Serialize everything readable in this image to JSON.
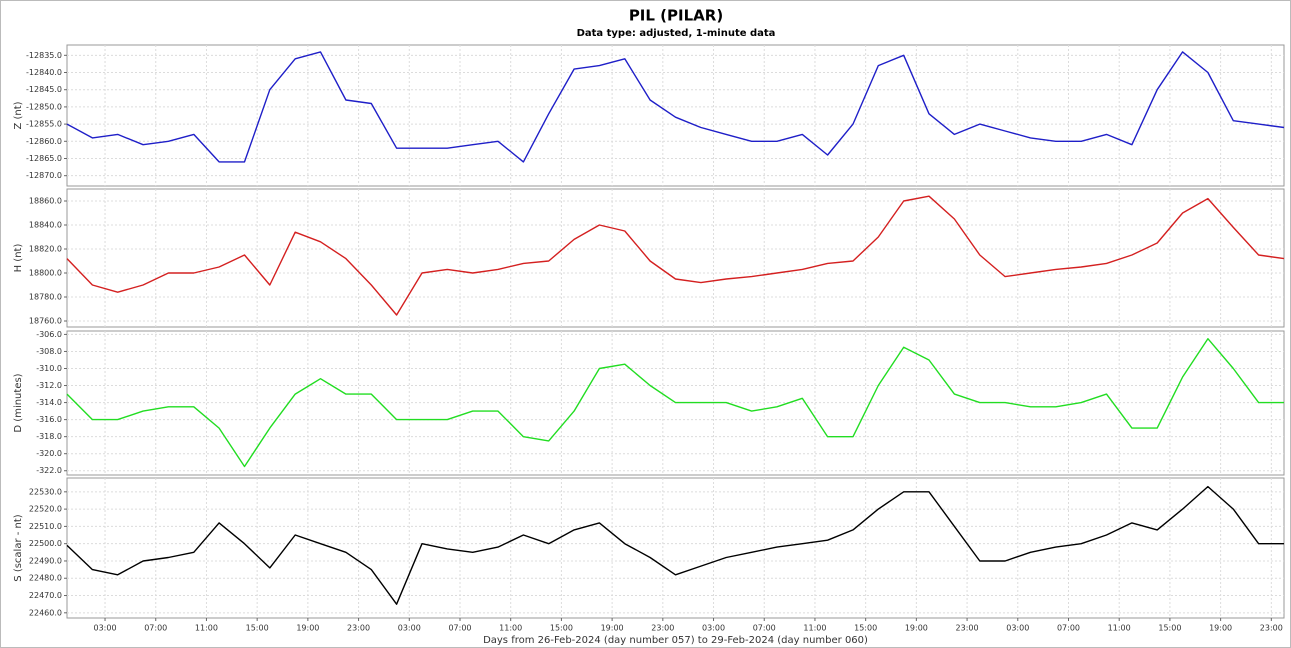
{
  "title": "PIL (PILAR)",
  "subtitle": "Data type: adjusted, 1-minute data",
  "chart_data": [
    {
      "type": "line",
      "ylabel": "Z (nt)",
      "color": "#1f1fc8",
      "grid": true,
      "x": [
        0,
        2,
        4,
        6,
        8,
        10,
        12,
        14,
        16,
        18,
        20,
        22,
        24,
        26,
        28,
        30,
        32,
        34,
        36,
        38,
        40,
        42,
        44,
        46,
        48,
        50,
        52,
        54,
        56,
        58,
        60,
        62,
        64,
        66,
        68,
        70,
        72,
        74,
        76,
        78,
        80,
        82,
        84,
        86,
        88,
        90,
        92,
        94,
        96
      ],
      "values": [
        -12855,
        -12859,
        -12858,
        -12861,
        -12860,
        -12858,
        -12866,
        -12866,
        -12845,
        -12836,
        -12834,
        -12848,
        -12849,
        -12862,
        -12862,
        -12862,
        -12861,
        -12860,
        -12866,
        -12852,
        -12839,
        -12838,
        -12836,
        -12848,
        -12853,
        -12856,
        -12858,
        -12860,
        -12860,
        -12858,
        -12864,
        -12855,
        -12838,
        -12835,
        -12852,
        -12858,
        -12855,
        -12857,
        -12859,
        -12860,
        -12860,
        -12858,
        -12861,
        -12845,
        -12834,
        -12840,
        -12854,
        -12855,
        -12856
      ],
      "ylim": [
        -12873,
        -12832
      ],
      "yticks": [
        {
          "value": -12835,
          "label": "-12835.0"
        },
        {
          "value": -12840,
          "label": "-12840.0"
        },
        {
          "value": -12845,
          "label": "-12845.0"
        },
        {
          "value": -12850,
          "label": "-12850.0"
        },
        {
          "value": -12855,
          "label": "-12855.0"
        },
        {
          "value": -12860,
          "label": "-12860.0"
        },
        {
          "value": -12865,
          "label": "-12865.0"
        },
        {
          "value": -12870,
          "label": "-12870.0"
        }
      ]
    },
    {
      "type": "line",
      "ylabel": "H (nt)",
      "color": "#d42020",
      "grid": true,
      "x": [
        0,
        2,
        4,
        6,
        8,
        10,
        12,
        14,
        16,
        18,
        20,
        22,
        24,
        26,
        28,
        30,
        32,
        34,
        36,
        38,
        40,
        42,
        44,
        46,
        48,
        50,
        52,
        54,
        56,
        58,
        60,
        62,
        64,
        66,
        68,
        70,
        72,
        74,
        76,
        78,
        80,
        82,
        84,
        86,
        88,
        90,
        92,
        94,
        96
      ],
      "values": [
        18812,
        18790,
        18784,
        18790,
        18800,
        18800,
        18805,
        18815,
        18790,
        18834,
        18826,
        18812,
        18790,
        18765,
        18800,
        18803,
        18800,
        18803,
        18808,
        18810,
        18828,
        18840,
        18835,
        18810,
        18795,
        18792,
        18795,
        18797,
        18800,
        18803,
        18808,
        18810,
        18830,
        18860,
        18864,
        18845,
        18815,
        18797,
        18800,
        18803,
        18805,
        18808,
        18815,
        18825,
        18850,
        18862,
        18838,
        18815,
        18812
      ],
      "ylim": [
        18755,
        18870
      ],
      "yticks": [
        {
          "value": 18760,
          "label": "18760.0"
        },
        {
          "value": 18780,
          "label": "18780.0"
        },
        {
          "value": 18800,
          "label": "18800.0"
        },
        {
          "value": 18820,
          "label": "18820.0"
        },
        {
          "value": 18840,
          "label": "18840.0"
        },
        {
          "value": 18860,
          "label": "18860.0"
        }
      ]
    },
    {
      "type": "line",
      "ylabel": "D (minutes)",
      "color": "#22dd22",
      "grid": true,
      "x": [
        0,
        2,
        4,
        6,
        8,
        10,
        12,
        14,
        16,
        18,
        20,
        22,
        24,
        26,
        28,
        30,
        32,
        34,
        36,
        38,
        40,
        42,
        44,
        46,
        48,
        50,
        52,
        54,
        56,
        58,
        60,
        62,
        64,
        66,
        68,
        70,
        72,
        74,
        76,
        78,
        80,
        82,
        84,
        86,
        88,
        90,
        92,
        94,
        96
      ],
      "values": [
        -313,
        -316,
        -316,
        -315,
        -314.5,
        -314.5,
        -317,
        -321.5,
        -317,
        -313,
        -311.2,
        -313,
        -313,
        -316,
        -316,
        -316,
        -315,
        -315,
        -318,
        -318.5,
        -315,
        -310,
        -309.5,
        -312,
        -314,
        -314,
        -314,
        -315,
        -314.5,
        -313.5,
        -318,
        -318,
        -312,
        -307.5,
        -309,
        -313,
        -314,
        -314,
        -314.5,
        -314.5,
        -314,
        -313,
        -317,
        -317,
        -311,
        -306.5,
        -310,
        -314,
        -314
      ],
      "ylim": [
        -322.5,
        -305.6
      ],
      "yticks": [
        {
          "value": -306,
          "label": "-306.0"
        },
        {
          "value": -308,
          "label": "-308.0"
        },
        {
          "value": -310,
          "label": "-310.0"
        },
        {
          "value": -312,
          "label": "-312.0"
        },
        {
          "value": -314,
          "label": "-314.0"
        },
        {
          "value": -316,
          "label": "-316.0"
        },
        {
          "value": -318,
          "label": "-318.0"
        },
        {
          "value": -320,
          "label": "-320.0"
        },
        {
          "value": -322,
          "label": "-322.0"
        }
      ]
    },
    {
      "type": "line",
      "ylabel": "S (scalar - nt)",
      "color": "#000000",
      "grid": true,
      "xlabel": "Days from 26-Feb-2024 (day number 057) to 29-Feb-2024 (day number 060)",
      "x": [
        0,
        2,
        4,
        6,
        8,
        10,
        12,
        14,
        16,
        18,
        20,
        22,
        24,
        26,
        28,
        30,
        32,
        34,
        36,
        38,
        40,
        42,
        44,
        46,
        48,
        50,
        52,
        54,
        56,
        58,
        60,
        62,
        64,
        66,
        68,
        70,
        72,
        74,
        76,
        78,
        80,
        82,
        84,
        86,
        88,
        90,
        92,
        94,
        96
      ],
      "values": [
        22499,
        22485,
        22482,
        22490,
        22492,
        22495,
        22512,
        22500,
        22486,
        22505,
        22500,
        22495,
        22485,
        22465,
        22500,
        22497,
        22495,
        22498,
        22505,
        22500,
        22508,
        22512,
        22500,
        22492,
        22482,
        22487,
        22492,
        22495,
        22498,
        22500,
        22502,
        22508,
        22520,
        22530,
        22530,
        22510,
        22490,
        22490,
        22495,
        22498,
        22500,
        22505,
        22512,
        22508,
        22520,
        22533,
        22520,
        22500,
        22500
      ],
      "ylim": [
        22457,
        22538
      ],
      "yticks": [
        {
          "value": 22460,
          "label": "22460.0"
        },
        {
          "value": 22470,
          "label": "22470.0"
        },
        {
          "value": 22480,
          "label": "22480.0"
        },
        {
          "value": 22490,
          "label": "22490.0"
        },
        {
          "value": 22500,
          "label": "22500.0"
        },
        {
          "value": 22510,
          "label": "22510.0"
        },
        {
          "value": 22520,
          "label": "22520.0"
        },
        {
          "value": 22530,
          "label": "22530.0"
        }
      ],
      "xlim": [
        0,
        96
      ],
      "xticks": [
        {
          "value": 3,
          "label": "03:00"
        },
        {
          "value": 7,
          "label": "07:00"
        },
        {
          "value": 11,
          "label": "11:00"
        },
        {
          "value": 15,
          "label": "15:00"
        },
        {
          "value": 19,
          "label": "19:00"
        },
        {
          "value": 23,
          "label": "23:00"
        },
        {
          "value": 27,
          "label": "03:00"
        },
        {
          "value": 31,
          "label": "07:00"
        },
        {
          "value": 35,
          "label": "11:00"
        },
        {
          "value": 39,
          "label": "15:00"
        },
        {
          "value": 43,
          "label": "19:00"
        },
        {
          "value": 47,
          "label": "23:00"
        },
        {
          "value": 51,
          "label": "03:00"
        },
        {
          "value": 55,
          "label": "07:00"
        },
        {
          "value": 59,
          "label": "11:00"
        },
        {
          "value": 63,
          "label": "15:00"
        },
        {
          "value": 67,
          "label": "19:00"
        },
        {
          "value": 71,
          "label": "23:00"
        },
        {
          "value": 75,
          "label": "03:00"
        },
        {
          "value": 79,
          "label": "07:00"
        },
        {
          "value": 83,
          "label": "11:00"
        },
        {
          "value": 87,
          "label": "15:00"
        },
        {
          "value": 91,
          "label": "19:00"
        },
        {
          "value": 95,
          "label": "23:00"
        }
      ]
    }
  ]
}
